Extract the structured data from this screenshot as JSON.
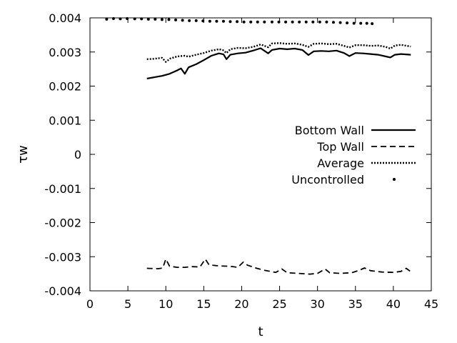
{
  "chart_data": {
    "type": "line",
    "title": "",
    "xlabel": "t",
    "ylabel": "τw",
    "xlim": [
      0,
      45
    ],
    "ylim": [
      -0.004,
      0.004
    ],
    "xticks": [
      0,
      5,
      10,
      15,
      20,
      25,
      30,
      35,
      40,
      45
    ],
    "yticks": [
      -0.004,
      -0.003,
      -0.002,
      -0.001,
      0,
      0.001,
      0.002,
      0.003,
      0.004
    ],
    "xtick_labels": [
      "0",
      "5",
      "10",
      "15",
      "20",
      "25",
      "30",
      "35",
      "40",
      "45"
    ],
    "ytick_labels": [
      "-0.004",
      "-0.003",
      "-0.002",
      "-0.001",
      "0",
      "0.001",
      "0.002",
      "0.003",
      "0.004"
    ],
    "grid": false,
    "legend_position": "right",
    "series": [
      {
        "name": "Bottom Wall",
        "style": "solid",
        "color": "#000000",
        "points": [
          [
            7.5,
            0.00222
          ],
          [
            8.5,
            0.00226
          ],
          [
            9.5,
            0.0023
          ],
          [
            10.5,
            0.00236
          ],
          [
            11.5,
            0.00246
          ],
          [
            12,
            0.00252
          ],
          [
            12.5,
            0.00236
          ],
          [
            13,
            0.00255
          ],
          [
            14,
            0.00264
          ],
          [
            15,
            0.00276
          ],
          [
            16,
            0.00289
          ],
          [
            17,
            0.00296
          ],
          [
            17.6,
            0.00293
          ],
          [
            18.0,
            0.00279
          ],
          [
            18.5,
            0.00292
          ],
          [
            19.5,
            0.00296
          ],
          [
            20.5,
            0.00298
          ],
          [
            21.5,
            0.00304
          ],
          [
            22.5,
            0.00311
          ],
          [
            23.5,
            0.00296
          ],
          [
            24,
            0.00306
          ],
          [
            25,
            0.0031
          ],
          [
            26,
            0.00308
          ],
          [
            27,
            0.0031
          ],
          [
            28,
            0.00306
          ],
          [
            28.8,
            0.00291
          ],
          [
            29.5,
            0.00302
          ],
          [
            30.5,
            0.00303
          ],
          [
            31.5,
            0.00302
          ],
          [
            32.5,
            0.00304
          ],
          [
            33.5,
            0.00297
          ],
          [
            34.2,
            0.00288
          ],
          [
            35,
            0.00297
          ],
          [
            36,
            0.00296
          ],
          [
            37,
            0.00294
          ],
          [
            38,
            0.00292
          ],
          [
            39,
            0.00287
          ],
          [
            39.6,
            0.00284
          ],
          [
            40.2,
            0.00292
          ],
          [
            41,
            0.00294
          ],
          [
            42.3,
            0.00292
          ]
        ]
      },
      {
        "name": "Top Wall",
        "style": "dashed",
        "color": "#000000",
        "points": [
          [
            7.5,
            -0.00334
          ],
          [
            9,
            -0.00335
          ],
          [
            9.6,
            -0.00333
          ],
          [
            10.0,
            -0.00307
          ],
          [
            10.5,
            -0.00328
          ],
          [
            11.5,
            -0.00331
          ],
          [
            12.5,
            -0.00331
          ],
          [
            13.5,
            -0.00329
          ],
          [
            14.5,
            -0.0033
          ],
          [
            15.2,
            -0.00307
          ],
          [
            15.7,
            -0.00324
          ],
          [
            17,
            -0.00327
          ],
          [
            18.5,
            -0.00328
          ],
          [
            19.5,
            -0.00331
          ],
          [
            20.2,
            -0.00316
          ],
          [
            20.8,
            -0.00325
          ],
          [
            22,
            -0.00334
          ],
          [
            23,
            -0.0034
          ],
          [
            24.5,
            -0.00346
          ],
          [
            25.3,
            -0.00336
          ],
          [
            26,
            -0.00347
          ],
          [
            27.5,
            -0.00349
          ],
          [
            29,
            -0.00351
          ],
          [
            30,
            -0.00349
          ],
          [
            31.0,
            -0.00336
          ],
          [
            31.6,
            -0.00347
          ],
          [
            33,
            -0.00349
          ],
          [
            34.5,
            -0.00347
          ],
          [
            35.5,
            -0.0034
          ],
          [
            36.2,
            -0.00333
          ],
          [
            37,
            -0.00341
          ],
          [
            38.5,
            -0.00345
          ],
          [
            40,
            -0.00346
          ],
          [
            41,
            -0.00343
          ],
          [
            41.7,
            -0.00334
          ],
          [
            42.3,
            -0.00344
          ]
        ]
      },
      {
        "name": "Average",
        "style": "dotted",
        "color": "#000000",
        "points": [
          [
            7.5,
            0.00279
          ],
          [
            8.5,
            0.0028
          ],
          [
            9.5,
            0.00283
          ],
          [
            10.0,
            0.00271
          ],
          [
            10.6,
            0.00281
          ],
          [
            11.5,
            0.00287
          ],
          [
            12.5,
            0.00289
          ],
          [
            13,
            0.00286
          ],
          [
            14,
            0.00292
          ],
          [
            15,
            0.00297
          ],
          [
            16,
            0.00304
          ],
          [
            17,
            0.00308
          ],
          [
            17.5,
            0.00306
          ],
          [
            18.0,
            0.00297
          ],
          [
            18.5,
            0.00308
          ],
          [
            19.5,
            0.00312
          ],
          [
            20.5,
            0.00311
          ],
          [
            21.5,
            0.00315
          ],
          [
            22.5,
            0.00322
          ],
          [
            23.5,
            0.00314
          ],
          [
            24,
            0.00325
          ],
          [
            25,
            0.00326
          ],
          [
            26,
            0.00324
          ],
          [
            27,
            0.00325
          ],
          [
            28,
            0.00321
          ],
          [
            28.8,
            0.00315
          ],
          [
            29.5,
            0.00324
          ],
          [
            30.5,
            0.00325
          ],
          [
            31.5,
            0.00323
          ],
          [
            32.5,
            0.00324
          ],
          [
            33.5,
            0.00318
          ],
          [
            34.2,
            0.00313
          ],
          [
            35,
            0.0032
          ],
          [
            36,
            0.0032
          ],
          [
            37,
            0.00318
          ],
          [
            38,
            0.00319
          ],
          [
            39,
            0.00315
          ],
          [
            39.6,
            0.0031
          ],
          [
            40.2,
            0.00319
          ],
          [
            41,
            0.00321
          ],
          [
            42.3,
            0.00316
          ]
        ]
      },
      {
        "name": "Uncontrolled",
        "style": "points",
        "color": "#000000",
        "points": [
          [
            2.2,
            0.00396
          ],
          [
            3.1,
            0.00398
          ],
          [
            4.0,
            0.00397
          ],
          [
            4.9,
            0.00398
          ],
          [
            5.9,
            0.00397
          ],
          [
            6.8,
            0.00397
          ],
          [
            7.7,
            0.00396
          ],
          [
            8.6,
            0.00396
          ],
          [
            9.5,
            0.00395
          ],
          [
            10.4,
            0.00395
          ],
          [
            11.3,
            0.00394
          ],
          [
            12.2,
            0.00393
          ],
          [
            13.1,
            0.00392
          ],
          [
            14.0,
            0.00392
          ],
          [
            14.9,
            0.00391
          ],
          [
            15.8,
            0.0039
          ],
          [
            16.7,
            0.0039
          ],
          [
            17.6,
            0.0039
          ],
          [
            18.5,
            0.00389
          ],
          [
            19.4,
            0.00389
          ],
          [
            20.3,
            0.00388
          ],
          [
            21.2,
            0.00388
          ],
          [
            22.1,
            0.00388
          ],
          [
            23.0,
            0.00388
          ],
          [
            24.0,
            0.00388
          ],
          [
            24.9,
            0.00388
          ],
          [
            25.8,
            0.00388
          ],
          [
            26.7,
            0.00388
          ],
          [
            27.6,
            0.00388
          ],
          [
            28.5,
            0.00388
          ],
          [
            29.4,
            0.00388
          ],
          [
            30.3,
            0.00388
          ],
          [
            31.2,
            0.00388
          ],
          [
            32.1,
            0.00387
          ],
          [
            33.0,
            0.00386
          ],
          [
            33.9,
            0.00385
          ],
          [
            34.8,
            0.00384
          ],
          [
            35.7,
            0.00384
          ],
          [
            36.5,
            0.00384
          ],
          [
            37.2,
            0.00383
          ]
        ]
      }
    ]
  }
}
